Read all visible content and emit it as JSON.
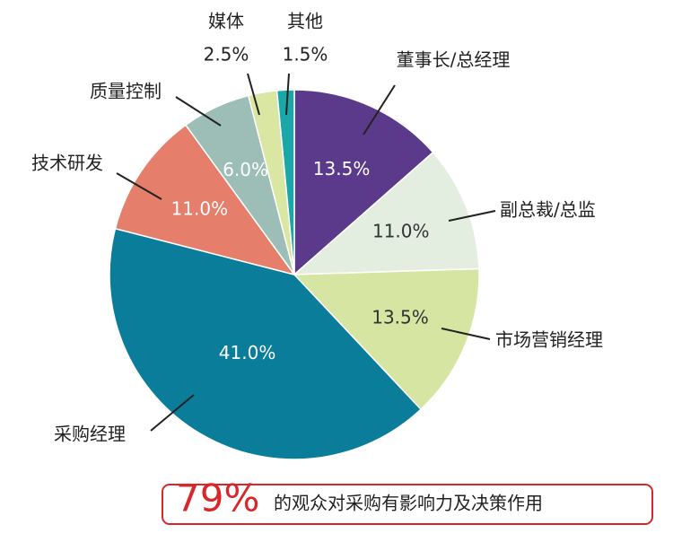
{
  "chart_data": {
    "type": "pie",
    "categories": [
      "董事长/总经理",
      "副总裁/总监",
      "市场营销经理",
      "采购经理",
      "技术研发",
      "质量控制",
      "媒体",
      "其他"
    ],
    "values": [
      13.5,
      11.0,
      13.5,
      41.0,
      11.0,
      6.0,
      2.5,
      1.5
    ],
    "value_labels": [
      "13.5%",
      "11.0%",
      "13.5%",
      "41.0%",
      "11.0%",
      "6.0%",
      "2.5%",
      "1.5%"
    ],
    "colors": [
      "#5b3a8c",
      "#e4eee0",
      "#d6e6a2",
      "#0a7d9b",
      "#e57e6a",
      "#9dbdb7",
      "#d9e7a3",
      "#1ba6a8"
    ],
    "annotation": {
      "highlight": "79%",
      "text": "的观众对采购有影响力及决策作用"
    }
  }
}
